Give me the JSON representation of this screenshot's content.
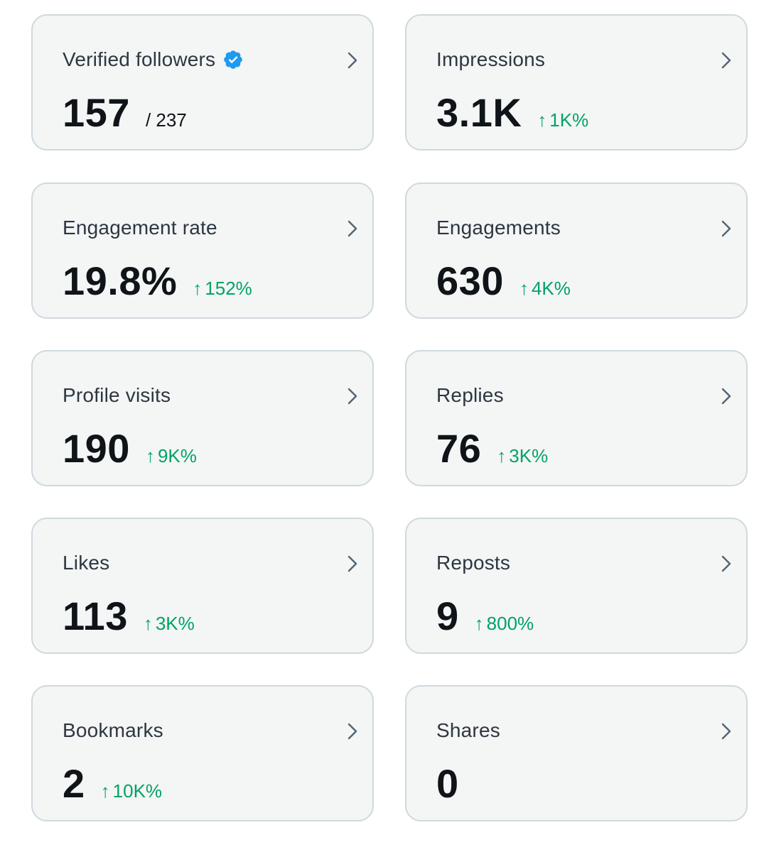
{
  "colors": {
    "card_bg": "#f4f5f5",
    "card_border": "#cfd9de",
    "label": "#2d3741",
    "value": "#0f1419",
    "positive": "#00a365",
    "verified_badge": "#1d9bf0"
  },
  "metrics": [
    {
      "label": "Verified followers",
      "value": "157",
      "total": "/ 237",
      "verified_icon": "verified-badge-icon"
    },
    {
      "label": "Impressions",
      "value": "3.1K",
      "change": "1K%",
      "trend": "up"
    },
    {
      "label": "Engagement rate",
      "value": "19.8%",
      "change": "152%",
      "trend": "up"
    },
    {
      "label": "Engagements",
      "value": "630",
      "change": "4K%",
      "trend": "up"
    },
    {
      "label": "Profile visits",
      "value": "190",
      "change": "9K%",
      "trend": "up"
    },
    {
      "label": "Replies",
      "value": "76",
      "change": "3K%",
      "trend": "up"
    },
    {
      "label": "Likes",
      "value": "113",
      "change": "3K%",
      "trend": "up"
    },
    {
      "label": "Reposts",
      "value": "9",
      "change": "800%",
      "trend": "up"
    },
    {
      "label": "Bookmarks",
      "value": "2",
      "change": "10K%",
      "trend": "up"
    },
    {
      "label": "Shares",
      "value": "0"
    }
  ],
  "change_arrow": "↑"
}
